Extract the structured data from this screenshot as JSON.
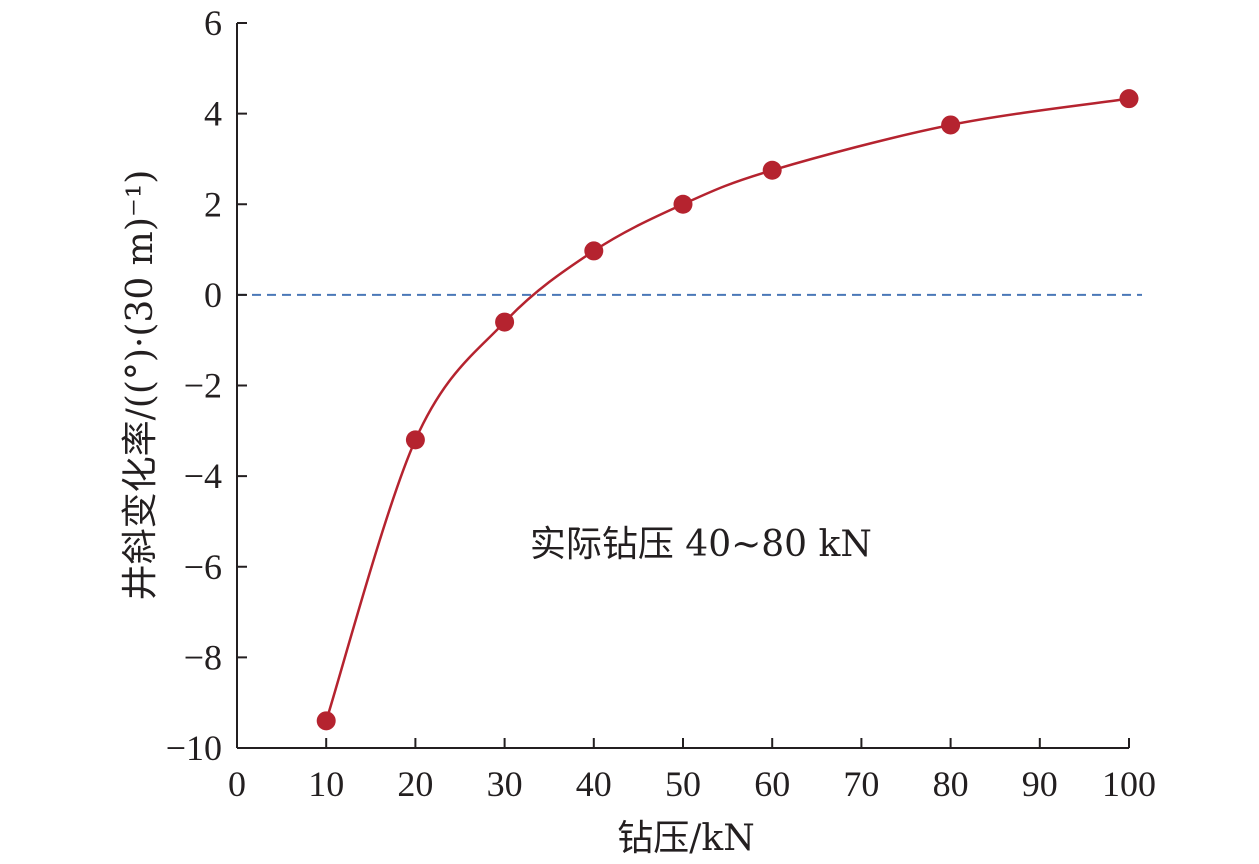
{
  "chart_data": {
    "type": "line",
    "xlabel": "钻压/kN",
    "ylabel": "井斜变化率/((°)·(30 m)⁻¹)",
    "xlim": [
      0,
      100
    ],
    "ylim": [
      -10,
      6
    ],
    "x_ticks": [
      "0",
      "10",
      "20",
      "30",
      "40",
      "50",
      "60",
      "70",
      "80",
      "90",
      "100"
    ],
    "y_ticks": [
      "−10",
      "−8",
      "−6",
      "−4",
      "−2",
      "0",
      "2",
      "4",
      "6"
    ],
    "grid": false,
    "series": [
      {
        "x": [
          10,
          20,
          30,
          40,
          50,
          60,
          80,
          100
        ],
        "y": [
          -9.4,
          -3.2,
          -0.6,
          0.97,
          2.0,
          2.75,
          3.75,
          4.33
        ],
        "color": "#b5232f",
        "marker": "circle",
        "smooth": true
      }
    ],
    "reference_line": {
      "y": 0,
      "style": "dashed",
      "color": "#4a78b8"
    },
    "annotation": {
      "text": "实际钻压 40~80 kN",
      "x": 52,
      "y": -5.5
    }
  }
}
